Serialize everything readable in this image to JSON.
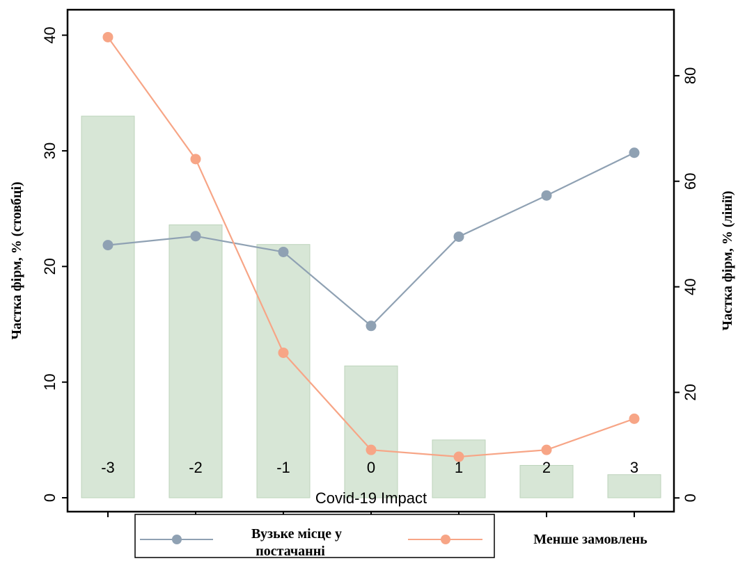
{
  "chart_data": {
    "type": "bar+line",
    "xlabel": "Covid-19 Impact",
    "ylabel_left": "Частка фірм, % (стовбці)",
    "ylabel_right": "Частка фірм, % (лінії)",
    "categories": [
      "-3",
      "-2",
      "-1",
      "0",
      "1",
      "2",
      "3"
    ],
    "x": [
      -3,
      -2,
      -1,
      0,
      1,
      2,
      3
    ],
    "y_left_ticks": [
      0,
      10,
      20,
      30,
      40
    ],
    "y_right_ticks": [
      0,
      20,
      40,
      60,
      80
    ],
    "ylim_left": [
      -1.2,
      42.2
    ],
    "ylim_right": [
      -2.6,
      92.5
    ],
    "bars": {
      "axis": "left",
      "color": "#d7e6d6",
      "values": [
        33,
        23.6,
        21.9,
        11.4,
        5,
        2.8,
        2
      ]
    },
    "series": [
      {
        "name": "Вузьке місце у постачанні",
        "axis": "right",
        "color": "#8fa1b3",
        "values": [
          47.9,
          49.6,
          46.6,
          32.6,
          49.5,
          57.3,
          65.4
        ]
      },
      {
        "name": "Менше замовлень",
        "axis": "right",
        "color": "#f7a586",
        "values": [
          87.3,
          64.2,
          27.5,
          9.1,
          7.8,
          9.1,
          15.0
        ]
      }
    ],
    "legend": {
      "position": "bottom",
      "items": [
        {
          "label_line1": "Вузьке місце у",
          "label_line2": "постачанні"
        },
        {
          "label_line1": "Менше замовлень"
        }
      ]
    }
  }
}
